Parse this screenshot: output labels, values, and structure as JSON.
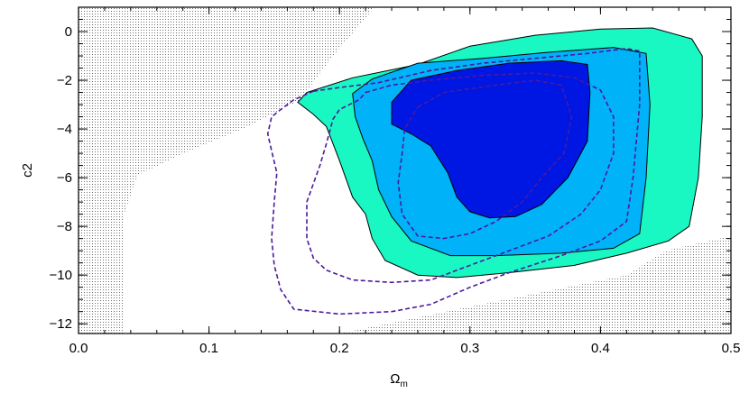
{
  "chart_data": {
    "type": "contour",
    "title": "",
    "xlabel": "Ω",
    "xlabel_sub": "m",
    "ylabel": "c2",
    "xlim": [
      0.0,
      0.5
    ],
    "ylim": [
      -12.4,
      1.0
    ],
    "xticks": [
      0.0,
      0.1,
      0.2,
      0.3,
      0.4,
      0.5
    ],
    "yticks": [
      0,
      -2,
      -4,
      -6,
      -8,
      -10,
      -12
    ],
    "xtick_labels": [
      "0.0",
      "0.1",
      "0.2",
      "0.3",
      "0.4",
      "0.5"
    ],
    "ytick_labels": [
      "0",
      "−2",
      "−4",
      "−6",
      "−8",
      "−10",
      "−12"
    ],
    "grid": false,
    "legend": "none",
    "colors": {
      "excluded_hatch": "#707070",
      "level_3sigma": "#19f7c3",
      "level_2sigma": "#00b2f7",
      "level_1sigma": "#0016e3",
      "dashed": "#4b1a9d"
    },
    "excluded_regions": [
      {
        "points": [
          [
            0.0,
            1.0
          ],
          [
            0.227,
            1.0
          ],
          [
            0.195,
            -1.0
          ],
          [
            0.17,
            -2.8
          ],
          [
            0.13,
            -3.9
          ],
          [
            0.085,
            -4.9
          ],
          [
            0.045,
            -5.9
          ],
          [
            0.035,
            -7.5
          ],
          [
            0.035,
            -12.4
          ],
          [
            0.0,
            -12.4
          ]
        ]
      },
      {
        "points": [
          [
            0.45,
            -9.0
          ],
          [
            0.5,
            -8.4
          ],
          [
            0.5,
            -12.4
          ],
          [
            0.2,
            -12.4
          ],
          [
            0.3,
            -11.3
          ],
          [
            0.42,
            -10.0
          ]
        ]
      }
    ],
    "filled_contours": [
      {
        "level": "3sigma",
        "points": [
          [
            0.175,
            -2.5
          ],
          [
            0.21,
            -1.9
          ],
          [
            0.26,
            -1.35
          ],
          [
            0.3,
            -0.6
          ],
          [
            0.35,
            -0.15
          ],
          [
            0.4,
            0.1
          ],
          [
            0.44,
            0.15
          ],
          [
            0.47,
            -0.3
          ],
          [
            0.478,
            -1.0
          ],
          [
            0.478,
            -3.5
          ],
          [
            0.475,
            -6.0
          ],
          [
            0.468,
            -8.0
          ],
          [
            0.452,
            -8.6
          ],
          [
            0.42,
            -9.1
          ],
          [
            0.38,
            -9.6
          ],
          [
            0.33,
            -9.9
          ],
          [
            0.29,
            -10.1
          ],
          [
            0.26,
            -10.0
          ],
          [
            0.235,
            -9.4
          ],
          [
            0.225,
            -8.5
          ],
          [
            0.22,
            -7.5
          ],
          [
            0.21,
            -6.8
          ],
          [
            0.2,
            -5.3
          ],
          [
            0.19,
            -3.9
          ],
          [
            0.18,
            -3.4
          ],
          [
            0.168,
            -2.9
          ]
        ]
      },
      {
        "level": "2sigma",
        "points": [
          [
            0.21,
            -2.55
          ],
          [
            0.225,
            -1.95
          ],
          [
            0.26,
            -1.3
          ],
          [
            0.31,
            -1.1
          ],
          [
            0.36,
            -0.85
          ],
          [
            0.41,
            -0.65
          ],
          [
            0.435,
            -0.9
          ],
          [
            0.438,
            -3.0
          ],
          [
            0.435,
            -6.0
          ],
          [
            0.43,
            -8.3
          ],
          [
            0.41,
            -8.9
          ],
          [
            0.37,
            -9.1
          ],
          [
            0.32,
            -9.2
          ],
          [
            0.285,
            -9.2
          ],
          [
            0.255,
            -8.6
          ],
          [
            0.24,
            -7.6
          ],
          [
            0.23,
            -6.5
          ],
          [
            0.225,
            -5.3
          ],
          [
            0.218,
            -4.4
          ],
          [
            0.212,
            -3.5
          ]
        ]
      },
      {
        "level": "1sigma",
        "points": [
          [
            0.24,
            -2.9
          ],
          [
            0.255,
            -2.0
          ],
          [
            0.29,
            -1.6
          ],
          [
            0.33,
            -1.3
          ],
          [
            0.37,
            -1.2
          ],
          [
            0.39,
            -1.35
          ],
          [
            0.392,
            -2.5
          ],
          [
            0.39,
            -4.5
          ],
          [
            0.375,
            -6.0
          ],
          [
            0.355,
            -7.1
          ],
          [
            0.335,
            -7.6
          ],
          [
            0.315,
            -7.65
          ],
          [
            0.3,
            -7.4
          ],
          [
            0.29,
            -6.8
          ],
          [
            0.283,
            -5.8
          ],
          [
            0.27,
            -4.7
          ],
          [
            0.255,
            -4.2
          ],
          [
            0.24,
            -3.8
          ]
        ]
      }
    ],
    "dashed_contours": [
      {
        "points": [
          [
            0.18,
            -2.45
          ],
          [
            0.2,
            -2.3
          ],
          [
            0.23,
            -2.1
          ],
          [
            0.27,
            -1.6
          ],
          [
            0.31,
            -1.3
          ],
          [
            0.35,
            -1.1
          ],
          [
            0.39,
            -0.9
          ],
          [
            0.42,
            -0.7
          ],
          [
            0.43,
            -0.8
          ],
          [
            0.43,
            -3.0
          ],
          [
            0.425,
            -6.0
          ],
          [
            0.42,
            -7.8
          ],
          [
            0.4,
            -8.6
          ],
          [
            0.37,
            -9.2
          ],
          [
            0.33,
            -9.9
          ],
          [
            0.3,
            -10.5
          ],
          [
            0.27,
            -11.2
          ],
          [
            0.24,
            -11.5
          ],
          [
            0.2,
            -11.6
          ],
          [
            0.165,
            -11.4
          ],
          [
            0.155,
            -10.6
          ],
          [
            0.15,
            -9.6
          ],
          [
            0.148,
            -8.5
          ],
          [
            0.15,
            -7.0
          ],
          [
            0.152,
            -5.8
          ],
          [
            0.148,
            -4.9
          ],
          [
            0.145,
            -4.2
          ],
          [
            0.148,
            -3.5
          ],
          [
            0.155,
            -3.2
          ],
          [
            0.165,
            -2.8
          ]
        ]
      },
      {
        "points": [
          [
            0.22,
            -2.5
          ],
          [
            0.24,
            -2.2
          ],
          [
            0.27,
            -2.0
          ],
          [
            0.31,
            -1.8
          ],
          [
            0.35,
            -1.7
          ],
          [
            0.38,
            -1.9
          ],
          [
            0.4,
            -2.4
          ],
          [
            0.41,
            -3.5
          ],
          [
            0.41,
            -5.0
          ],
          [
            0.4,
            -6.5
          ],
          [
            0.385,
            -7.5
          ],
          [
            0.36,
            -8.4
          ],
          [
            0.32,
            -9.2
          ],
          [
            0.29,
            -9.8
          ],
          [
            0.27,
            -10.2
          ],
          [
            0.24,
            -10.3
          ],
          [
            0.21,
            -10.2
          ],
          [
            0.19,
            -9.8
          ],
          [
            0.18,
            -9.3
          ],
          [
            0.175,
            -8.5
          ],
          [
            0.175,
            -7.0
          ],
          [
            0.185,
            -5.5
          ],
          [
            0.19,
            -4.6
          ],
          [
            0.195,
            -3.6
          ],
          [
            0.2,
            -3.2
          ],
          [
            0.215,
            -2.8
          ]
        ]
      },
      {
        "points": [
          [
            0.26,
            -3.1
          ],
          [
            0.28,
            -2.5
          ],
          [
            0.32,
            -2.2
          ],
          [
            0.35,
            -2.0
          ],
          [
            0.37,
            -2.2
          ],
          [
            0.378,
            -3.5
          ],
          [
            0.372,
            -5.0
          ],
          [
            0.355,
            -6.0
          ],
          [
            0.34,
            -7.0
          ],
          [
            0.32,
            -7.8
          ],
          [
            0.3,
            -8.3
          ],
          [
            0.28,
            -8.5
          ],
          [
            0.26,
            -8.4
          ],
          [
            0.248,
            -7.5
          ],
          [
            0.245,
            -6.2
          ],
          [
            0.248,
            -5.0
          ],
          [
            0.25,
            -4.0
          ]
        ]
      }
    ]
  }
}
